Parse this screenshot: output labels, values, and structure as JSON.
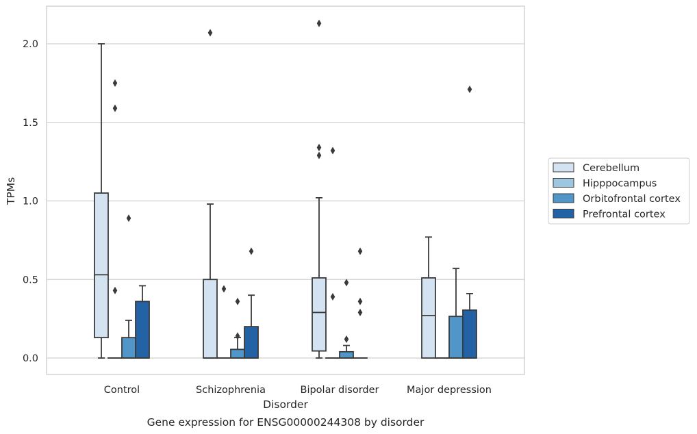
{
  "chart_data": {
    "type": "box",
    "caption": "Gene expression for ENSG00000244308 by disorder",
    "xlabel": "Disorder",
    "ylabel": "TPMs",
    "ylim": [
      -0.105,
      2.245
    ],
    "yticks": [
      "0.0",
      "0.5",
      "1.0",
      "1.5",
      "2.0"
    ],
    "ytick_values": [
      0.0,
      0.5,
      1.0,
      1.5,
      2.0
    ],
    "grid": true,
    "legend_position": "right",
    "categories": [
      "Control",
      "Schizophrenia",
      "Bipolar disorder",
      "Major depression"
    ],
    "series": [
      {
        "name": "Cerebellum",
        "color": "#d3e3f2",
        "boxes": [
          {
            "q1": 0.13,
            "median": 0.53,
            "q3": 1.05,
            "whislo": 0.0,
            "whishi": 2.0,
            "fliers": []
          },
          {
            "q1": 0.0,
            "median": 0.0,
            "q3": 0.5,
            "whislo": 0.0,
            "whishi": 0.98,
            "fliers": [
              2.07
            ]
          },
          {
            "q1": 0.045,
            "median": 0.29,
            "q3": 0.51,
            "whislo": 0.0,
            "whishi": 1.02,
            "fliers": [
              1.29,
              1.34,
              2.13
            ]
          },
          {
            "q1": 0.0,
            "median": 0.27,
            "q3": 0.51,
            "whislo": 0.0,
            "whishi": 0.77,
            "fliers": []
          }
        ]
      },
      {
        "name": "Hipppocampus",
        "color": "#9dc7e0",
        "boxes": [
          {
            "q1": 0.0,
            "median": 0.0,
            "q3": 0.0,
            "whislo": 0.0,
            "whishi": 0.0,
            "fliers": [
              0.43,
              1.59,
              1.75
            ]
          },
          {
            "q1": 0.0,
            "median": 0.0,
            "q3": 0.0,
            "whislo": 0.0,
            "whishi": 0.0,
            "fliers": [
              0.44
            ]
          },
          {
            "q1": 0.0,
            "median": 0.0,
            "q3": 0.0,
            "whislo": 0.0,
            "whishi": 0.0,
            "fliers": [
              0.39,
              1.32
            ]
          },
          {
            "q1": 0.0,
            "median": 0.0,
            "q3": 0.0,
            "whislo": 0.0,
            "whishi": 0.0,
            "fliers": []
          }
        ]
      },
      {
        "name": "Orbitofrontal cortex",
        "color": "#5096c8",
        "boxes": [
          {
            "q1": 0.0,
            "median": 0.0,
            "q3": 0.13,
            "whislo": 0.0,
            "whishi": 0.24,
            "fliers": [
              0.89
            ]
          },
          {
            "q1": 0.0,
            "median": 0.0,
            "q3": 0.055,
            "whislo": 0.0,
            "whishi": 0.13,
            "fliers": [
              0.14,
              0.36
            ]
          },
          {
            "q1": 0.0,
            "median": 0.0,
            "q3": 0.04,
            "whislo": 0.0,
            "whishi": 0.08,
            "fliers": [
              0.12,
              0.48
            ]
          },
          {
            "q1": 0.0,
            "median": 0.0,
            "q3": 0.265,
            "whislo": 0.0,
            "whishi": 0.57,
            "fliers": []
          }
        ]
      },
      {
        "name": "Prefrontal cortex",
        "color": "#2462a6",
        "boxes": [
          {
            "q1": 0.0,
            "median": 0.0,
            "q3": 0.36,
            "whislo": 0.0,
            "whishi": 0.46,
            "fliers": []
          },
          {
            "q1": 0.0,
            "median": 0.0,
            "q3": 0.2,
            "whislo": 0.0,
            "whishi": 0.4,
            "fliers": [
              0.68
            ]
          },
          {
            "q1": 0.0,
            "median": 0.0,
            "q3": 0.0,
            "whislo": 0.0,
            "whishi": 0.0,
            "fliers": [
              0.29,
              0.36,
              0.68
            ]
          },
          {
            "q1": 0.0,
            "median": 0.0,
            "q3": 0.305,
            "whislo": 0.0,
            "whishi": 0.41,
            "fliers": [
              1.71
            ]
          }
        ]
      }
    ]
  }
}
